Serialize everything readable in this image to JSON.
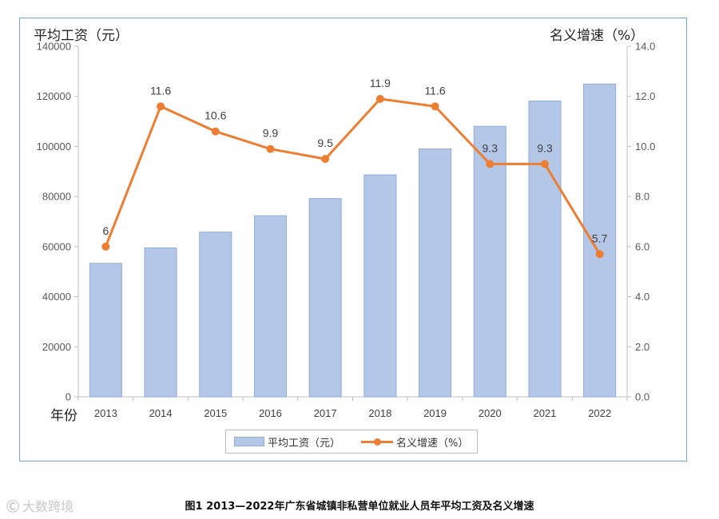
{
  "chart_data": {
    "type": "bar",
    "categories": [
      "2013",
      "2014",
      "2015",
      "2016",
      "2017",
      "2018",
      "2019",
      "2020",
      "2021",
      "2022"
    ],
    "series": [
      {
        "name": "平均工资（元）",
        "kind": "bar",
        "axis": "left",
        "values": [
          53318,
          59481,
          65788,
          72326,
          79183,
          88636,
          99026,
          108045,
          118133,
          124916
        ]
      },
      {
        "name": "名义增速（%）",
        "kind": "line",
        "axis": "right",
        "values": [
          6,
          11.6,
          10.6,
          9.9,
          9.5,
          11.9,
          11.6,
          9.3,
          9.3,
          5.7
        ],
        "labels": [
          "6",
          "11.6",
          "10.6",
          "9.9",
          "9.5",
          "11.9",
          "11.6",
          "9.3",
          "9.3",
          "5.7"
        ]
      }
    ],
    "left_axis": {
      "title": "平均工资（元）",
      "ylim": [
        0,
        140000
      ],
      "ticks": [
        "0",
        "20000",
        "40000",
        "60000",
        "80000",
        "100000",
        "120000",
        "140000"
      ]
    },
    "right_axis": {
      "title": "名义增速（%）",
      "ylim": [
        0,
        14
      ],
      "ticks": [
        "0.0",
        "2.0",
        "4.0",
        "6.0",
        "8.0",
        "10.0",
        "12.0",
        "14.0"
      ]
    },
    "xlabel": "年份",
    "legend": {
      "placement": "bottom",
      "bar_label": "平均工资（元）",
      "line_label": "名义增速（%）"
    },
    "title": "图1  2013—2022年广东省城镇非私营单位就业人员年平均工资及名义增速",
    "colors": {
      "bar_fill": "#b4c7e7",
      "bar_stroke": "#8faadc",
      "line": "#ed7d31",
      "frame": "#6fa8dc"
    }
  },
  "watermark": {
    "icon_text": "Ⓒ",
    "text": "大数跨境"
  }
}
